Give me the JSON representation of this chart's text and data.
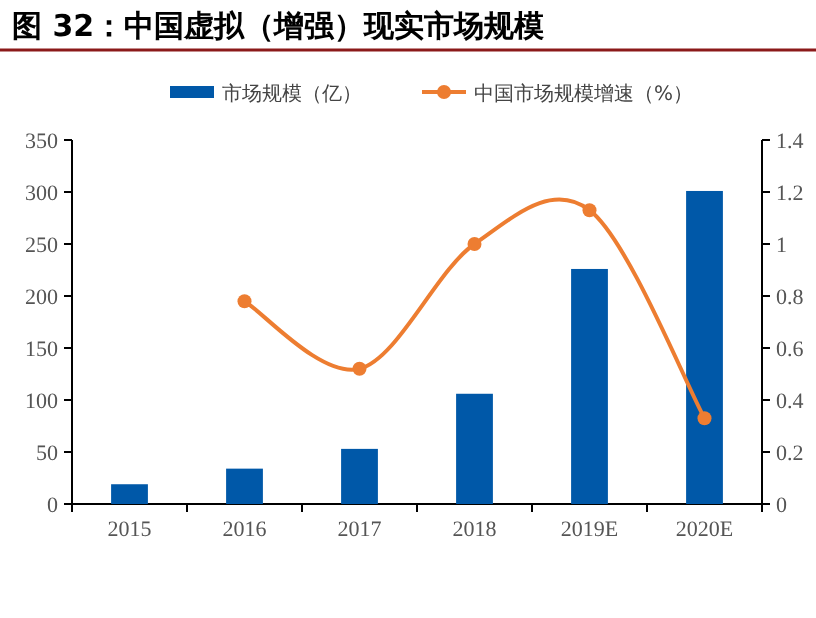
{
  "chart_data": {
    "type": "bar",
    "title": "图 32：中国虚拟（增强）现实市场规模",
    "categories": [
      "2015",
      "2016",
      "2017",
      "2018",
      "2019E",
      "2020E"
    ],
    "series": [
      {
        "name": "市场规模（亿）",
        "color": "#0058a8",
        "values": [
          19,
          34,
          53,
          106,
          226,
          301
        ]
      },
      {
        "name": "中国市场规模增速（%）",
        "type": "line",
        "axis": "y2",
        "color": "#ed7d31",
        "marker": "circle",
        "values": [
          null,
          0.78,
          0.52,
          1.0,
          1.13,
          0.33
        ]
      }
    ],
    "ylim": [
      0,
      350
    ],
    "yticks": [
      0,
      50,
      100,
      150,
      200,
      250,
      300,
      350
    ],
    "y2lim": [
      0,
      1.4
    ],
    "y2ticks": [
      0,
      0.2,
      0.4,
      0.6,
      0.8,
      1,
      1.2,
      1.4
    ],
    "legend": "top",
    "grid": false
  }
}
